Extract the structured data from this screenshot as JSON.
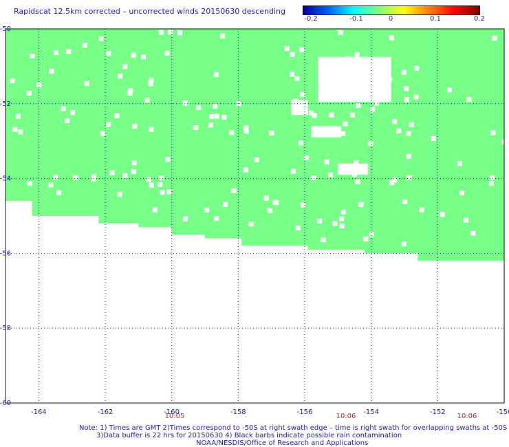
{
  "title": "Rapidscat 12.5km corrected – uncorrected winds 20150630 descending",
  "colorbar": {
    "ticks": [
      "-0.2",
      "-0.1",
      "0",
      "0.1",
      "0.2"
    ],
    "colors": [
      "#0000a0",
      "#0060ff",
      "#00ffff",
      "#80ff80",
      "#ffff00",
      "#ff8000",
      "#ff0000",
      "#800000"
    ]
  },
  "chart_data": {
    "type": "heatmap",
    "title": "Rapidscat 12.5km corrected – uncorrected winds 20150630 descending",
    "xlim": [
      -165,
      -150
    ],
    "ylim": [
      -60,
      -50
    ],
    "x_ticks": [
      "-164",
      "-162",
      "-160",
      "-158",
      "-156",
      "-154",
      "-152",
      "-150"
    ],
    "y_ticks": [
      "-50",
      "-52",
      "-54",
      "-56",
      "-58",
      "-60"
    ],
    "fill_color": "#77ff88",
    "value_shown": 0,
    "swath_southern_edge": [
      {
        "lon": -165.0,
        "lat": -54.3
      },
      {
        "lon": -164.2,
        "lat": -54.6
      },
      {
        "lon": -162.2,
        "lat": -55.0
      },
      {
        "lon": -161.0,
        "lat": -55.2
      },
      {
        "lon": -160.0,
        "lat": -55.3
      },
      {
        "lon": -159.0,
        "lat": -55.5
      },
      {
        "lon": -157.9,
        "lat": -55.6
      },
      {
        "lon": -155.9,
        "lat": -55.8
      },
      {
        "lon": -154.2,
        "lat": -55.9
      },
      {
        "lon": -152.6,
        "lat": -56.0
      },
      {
        "lon": -150.2,
        "lat": -56.2
      }
    ],
    "grid": true,
    "times": [
      "10:05",
      "10:06",
      "10:06"
    ]
  },
  "notes": {
    "line1": "Note: 1) Times are GMT 2)Times correspond to -50S at right swath edge – time is right swath for overlapping swaths at -50S",
    "line2": "3)Data buffer is 22 hrs for 20150630 4) Black barbs indicate possible rain contamination",
    "line3": "NOAA/NESDIS/Office of Research and Applications"
  }
}
